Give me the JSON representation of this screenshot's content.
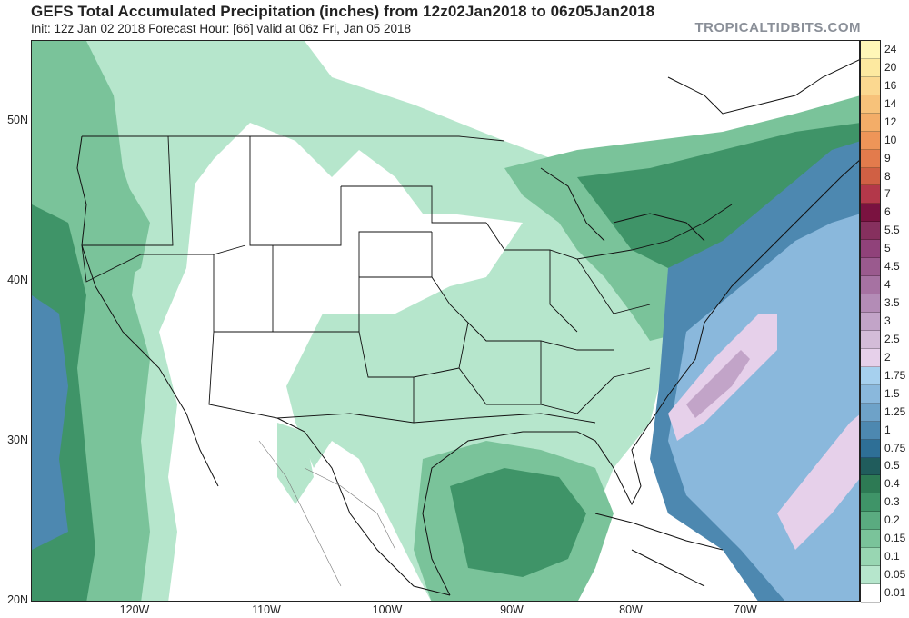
{
  "header": {
    "title": "GEFS Total Accumulated Precipitation (inches) from 12z02Jan2018 to 06z05Jan2018",
    "subtitle": "Init: 12z Jan 02 2018   Forecast Hour: [66]   valid at 06z Fri, Jan 05 2018",
    "brand": "TROPICALTIDBITS.COM"
  },
  "map": {
    "lat_labels": [
      "50N",
      "40N",
      "30N",
      "20N"
    ],
    "lon_labels": [
      "120W",
      "110W",
      "100W",
      "90W",
      "80W",
      "70W"
    ]
  },
  "legend": {
    "levels": [
      {
        "label": "24",
        "color": "#fff7b8"
      },
      {
        "label": "20",
        "color": "#fde9a0"
      },
      {
        "label": "16",
        "color": "#fbd890"
      },
      {
        "label": "14",
        "color": "#f7c27a"
      },
      {
        "label": "12",
        "color": "#f3ad68"
      },
      {
        "label": "10",
        "color": "#ee9558"
      },
      {
        "label": "9",
        "color": "#e37b4c"
      },
      {
        "label": "8",
        "color": "#d06044"
      },
      {
        "label": "7",
        "color": "#b3384a"
      },
      {
        "label": "6",
        "color": "#7a1240"
      },
      {
        "label": "5.5",
        "color": "#86305e"
      },
      {
        "label": "5",
        "color": "#90427a"
      },
      {
        "label": "4.5",
        "color": "#9a5a8e"
      },
      {
        "label": "4",
        "color": "#a672a2"
      },
      {
        "label": "3.5",
        "color": "#b38cb6"
      },
      {
        "label": "3",
        "color": "#c2a4c8"
      },
      {
        "label": "2.5",
        "color": "#d3bcd8"
      },
      {
        "label": "2",
        "color": "#e6d0ea"
      },
      {
        "label": "1.75",
        "color": "#a6d0ee"
      },
      {
        "label": "1.5",
        "color": "#8ab8dc"
      },
      {
        "label": "1.25",
        "color": "#6ea2c8"
      },
      {
        "label": "1",
        "color": "#4d88b0"
      },
      {
        "label": "0.75",
        "color": "#2e6f96"
      },
      {
        "label": "0.5",
        "color": "#205c5c"
      },
      {
        "label": "0.4",
        "color": "#2d7a54"
      },
      {
        "label": "0.3",
        "color": "#3f9468"
      },
      {
        "label": "0.2",
        "color": "#5aab80"
      },
      {
        "label": "0.15",
        "color": "#7ac39a"
      },
      {
        "label": "0.1",
        "color": "#98d6b2"
      },
      {
        "label": "0.05",
        "color": "#b6e6cc"
      },
      {
        "label": "0.01",
        "color": "#ffffff"
      }
    ]
  }
}
